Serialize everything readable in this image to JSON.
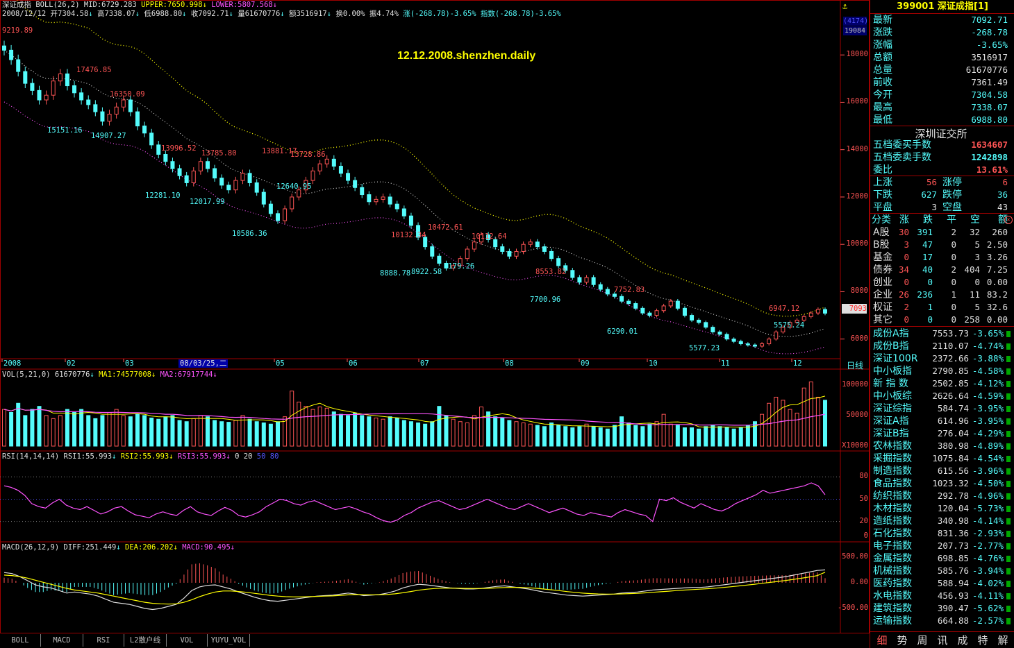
{
  "chart": {
    "name": "深证成指",
    "boll_header": "BOLL(26,2)",
    "mid": "MID:6729.283",
    "upper": "UPPER:7650.998",
    "lower": "LOWER:5807.568",
    "date": "2008/12/12",
    "ohlc_line": {
      "open": "开7304.58",
      "high": "高7338.07",
      "low": "低6988.80",
      "close": "收7092.71",
      "volume": "量61670776",
      "amount": "额3516917",
      "turnover": "换0.00%",
      "amplitude": "振4.74%",
      "change": "涨(-268.78)-3.65%",
      "index": "指数(-268.78)-3.65%"
    },
    "watermark": "12.12.2008.shenzhen.daily",
    "badge_top": "(4174)",
    "badge_bottom": "19084",
    "price_tag": "7093",
    "y_ticks": [
      "18000",
      "16000",
      "14000",
      "12000",
      "10000",
      "8000",
      "6000"
    ],
    "x_ticks": [
      "2008",
      "02",
      "03",
      "05",
      "06",
      "07",
      "08",
      "09",
      "10",
      "11",
      "12"
    ],
    "cursor_date": "08/03/25,二",
    "period": "日线",
    "marked_points": [
      {
        "text": "9219.89",
        "color": "red"
      },
      {
        "text": "17476.85",
        "color": "red"
      },
      {
        "text": "16350.09",
        "color": "red"
      },
      {
        "text": "15151.16",
        "color": "cyan"
      },
      {
        "text": "14907.27",
        "color": "cyan"
      },
      {
        "text": "13996.52",
        "color": "red"
      },
      {
        "text": "13785.80",
        "color": "red"
      },
      {
        "text": "13881.17",
        "color": "red"
      },
      {
        "text": "13728.86",
        "color": "red"
      },
      {
        "text": "12281.10",
        "color": "cyan"
      },
      {
        "text": "12017.99",
        "color": "cyan"
      },
      {
        "text": "12640.95",
        "color": "cyan"
      },
      {
        "text": "10586.36",
        "color": "cyan"
      },
      {
        "text": "10132.34",
        "color": "red"
      },
      {
        "text": "10472.61",
        "color": "red"
      },
      {
        "text": "10112.64",
        "color": "red"
      },
      {
        "text": "8888.78",
        "color": "cyan"
      },
      {
        "text": "8922.58",
        "color": "cyan"
      },
      {
        "text": "9179.26",
        "color": "cyan"
      },
      {
        "text": "8553.82",
        "color": "red"
      },
      {
        "text": "7700.96",
        "color": "cyan"
      },
      {
        "text": "7752.83",
        "color": "red"
      },
      {
        "text": "6290.01",
        "color": "cyan"
      },
      {
        "text": "6947.12",
        "color": "red"
      },
      {
        "text": "5575.24",
        "color": "cyan"
      },
      {
        "text": "5577.23",
        "color": "cyan"
      }
    ],
    "close_series": [
      18200,
      17800,
      17300,
      16800,
      16500,
      16100,
      16300,
      16900,
      17200,
      16700,
      16400,
      16100,
      15900,
      15600,
      15200,
      15500,
      15800,
      16100,
      15600,
      15000,
      14700,
      14200,
      13800,
      13500,
      13200,
      12900,
      12600,
      13100,
      13500,
      13200,
      12800,
      12500,
      12300,
      12700,
      13000,
      12600,
      12200,
      11700,
      11300,
      11000,
      11500,
      12000,
      12300,
      12700,
      13100,
      13400,
      13600,
      13300,
      13000,
      12700,
      12400,
      12100,
      11800,
      11900,
      12000,
      11700,
      11500,
      11200,
      10800,
      10300,
      9900,
      9500,
      9200,
      9000,
      9100,
      9400,
      9800,
      10100,
      10400,
      10200,
      9900,
      9700,
      9500,
      9700,
      10000,
      10100,
      9900,
      9700,
      9400,
      9100,
      8900,
      8600,
      8400,
      8600,
      8300,
      8100,
      7900,
      7800,
      7600,
      7500,
      7300,
      7100,
      7000,
      7200,
      7400,
      7600,
      7300,
      7000,
      6800,
      6700,
      6500,
      6300,
      6200,
      6000,
      5900,
      5800,
      5750,
      5700,
      5800,
      6000,
      6300,
      6500,
      6700,
      6800,
      6950,
      7100,
      7250,
      7092
    ]
  },
  "volume_panel": {
    "header": "VOL(5,21,0)",
    "value": "61670776",
    "ma1": "MA1:74577008",
    "ma2": "MA2:67917744",
    "y_ticks": [
      "100000",
      "50000",
      "X10000"
    ],
    "volumes": [
      6,
      5.5,
      7,
      5,
      6,
      6.5,
      5,
      4.5,
      5,
      6,
      5.5,
      6,
      5,
      4.5,
      5,
      5.5,
      6,
      5,
      4.8,
      5.2,
      5,
      4.6,
      4.4,
      4.8,
      5,
      4.2,
      4,
      4.5,
      5,
      4.8,
      4.2,
      4,
      3.9,
      4.2,
      5,
      4.4,
      4,
      3.8,
      3.6,
      4,
      4.8,
      9,
      7.2,
      6.5,
      6,
      6.4,
      6.2,
      5.6,
      5.2,
      5,
      5.4,
      5,
      4.8,
      4.6,
      4.4,
      4.8,
      4.6,
      4.2,
      4,
      3.8,
      3.6,
      4,
      6.5,
      5,
      4.4,
      4,
      3.8,
      5,
      6.4,
      5.6,
      4.8,
      4.6,
      4.2,
      4,
      3.8,
      3.6,
      3.4,
      3.2,
      3.8,
      3.4,
      3.2,
      3,
      3.2,
      3.6,
      3.2,
      3,
      2.8,
      3.4,
      4.8,
      3.8,
      3.4,
      3.2,
      3.6,
      4,
      5.2,
      3.6,
      3.4,
      3,
      3,
      2.8,
      3.2,
      3.4,
      3.2,
      3,
      2.8,
      3,
      3.4,
      4,
      5.2,
      7,
      8,
      7.5,
      6,
      5.4,
      9.5,
      10.5,
      8,
      7.5
    ]
  },
  "rsi_panel": {
    "header": "RSI(14,14,14)",
    "rsi1": "RSI1:55.993",
    "rsi2": "RSI2:55.993",
    "rsi3": "RSI3:55.993",
    "levels": [
      "0",
      "20",
      "50",
      "80"
    ],
    "y_ticks": [
      "80",
      "50",
      "20",
      "0"
    ],
    "values": [
      68,
      66,
      62,
      55,
      44,
      40,
      38,
      45,
      50,
      42,
      38,
      36,
      40,
      35,
      30,
      33,
      38,
      40,
      34,
      29,
      27,
      25,
      30,
      33,
      30,
      28,
      35,
      40,
      33,
      30,
      28,
      34,
      39,
      35,
      28,
      26,
      29,
      33,
      40,
      45,
      50,
      48,
      44,
      42,
      46,
      48,
      44,
      40,
      36,
      38,
      40,
      37,
      33,
      30,
      25,
      21,
      19,
      22,
      28,
      32,
      38,
      42,
      46,
      48,
      44,
      40,
      36,
      38,
      42,
      46,
      50,
      46,
      42,
      38,
      36,
      40,
      44,
      40,
      36,
      32,
      35,
      38,
      34,
      30,
      28,
      32,
      30,
      28,
      26,
      32,
      36,
      33,
      30,
      28,
      20,
      50,
      48,
      52,
      46,
      42,
      38,
      44,
      40,
      36,
      34,
      38,
      44,
      48,
      52,
      56,
      62,
      58,
      60,
      62,
      64,
      66,
      68,
      72,
      68,
      56
    ]
  },
  "macd_panel": {
    "header": "MACD(26,12,9)",
    "diff": "DIFF:251.449",
    "dea": "DEA:206.202",
    "macd": "MACD:90.495",
    "y_ticks": [
      "500.00",
      "0.00",
      "-500.00"
    ],
    "diff_series": [
      200,
      180,
      120,
      40,
      -40,
      -80,
      -100,
      -150,
      -200,
      -180,
      -200,
      -220,
      -260,
      -320,
      -380,
      -400,
      -420,
      -460,
      -500,
      -520,
      -500,
      -460,
      -420,
      -300,
      -150,
      -80,
      -50,
      -40,
      -80,
      -120,
      -180,
      -230,
      -280,
      -320,
      -350,
      -360,
      -340,
      -320,
      -300,
      -280,
      -260,
      -250,
      -240,
      -220,
      -200,
      -220,
      -250,
      -240,
      -230,
      -200,
      -160,
      -100,
      -60,
      -30,
      -40,
      -60,
      -80,
      -100,
      -110,
      -120,
      -120,
      -110,
      -90,
      -70,
      -60,
      -80,
      -100,
      -120,
      -150,
      -180,
      -200,
      -220,
      -240,
      -250,
      -260,
      -250,
      -240,
      -230,
      -220,
      -200,
      -190,
      -180,
      -160,
      -140,
      -130,
      -120,
      -110,
      -100,
      -90,
      -90,
      -80,
      -60,
      -40,
      -20,
      0,
      20,
      40,
      60,
      80,
      100,
      120,
      150,
      180,
      210,
      240,
      251
    ],
    "dea_series": [
      150,
      140,
      120,
      90,
      50,
      10,
      -30,
      -70,
      -110,
      -140,
      -160,
      -180,
      -200,
      -230,
      -260,
      -290,
      -320,
      -350,
      -380,
      -400,
      -410,
      -415,
      -410,
      -380,
      -330,
      -270,
      -220,
      -180,
      -160,
      -160,
      -170,
      -185,
      -205,
      -225,
      -245,
      -260,
      -270,
      -275,
      -275,
      -270,
      -265,
      -260,
      -255,
      -245,
      -235,
      -230,
      -232,
      -234,
      -234,
      -228,
      -215,
      -195,
      -170,
      -145,
      -125,
      -112,
      -106,
      -105,
      -106,
      -109,
      -111,
      -111,
      -107,
      -100,
      -92,
      -89,
      -91,
      -97,
      -107,
      -121,
      -137,
      -153,
      -171,
      -187,
      -201,
      -211,
      -217,
      -220,
      -220,
      -216,
      -211,
      -205,
      -196,
      -185,
      -174,
      -163,
      -152,
      -142,
      -132,
      -124,
      -115,
      -104,
      -91,
      -77,
      -61,
      -45,
      -28,
      -10,
      8,
      27,
      46,
      67,
      89,
      113,
      139,
      206
    ]
  },
  "bottom_tabs": [
    "BOLL",
    "MACD",
    "RSI",
    "L2散户线",
    "VOL",
    "YUYU_VOL"
  ],
  "panel": {
    "title_code": "399001",
    "title_name": "深证成指",
    "title_suffix": "[1]",
    "quotes": [
      {
        "k": "最新",
        "v": "7092.71",
        "c": "#54fcfc"
      },
      {
        "k": "涨跌",
        "v": "-268.78",
        "c": "#54fcfc"
      },
      {
        "k": "涨幅",
        "v": "-3.65%",
        "c": "#54fcfc"
      },
      {
        "k": "总额",
        "v": "3516917",
        "c": "#e0e0e0"
      },
      {
        "k": "总量",
        "v": "61670776",
        "c": "#e0e0e0"
      },
      {
        "k": "前收",
        "v": "7361.49",
        "c": "#e0e0e0"
      },
      {
        "k": "今开",
        "v": "7304.58",
        "c": "#54fcfc"
      },
      {
        "k": "最高",
        "v": "7338.07",
        "c": "#54fcfc"
      },
      {
        "k": "最低",
        "v": "6988.80",
        "c": "#54fcfc"
      }
    ],
    "exchange": "深圳证交所",
    "orders": [
      {
        "k": "五档委买手数",
        "v": "1634607",
        "c": "#ff5555"
      },
      {
        "k": "五档委卖手数",
        "v": "1242898",
        "c": "#54fcfc"
      },
      {
        "k": "委比",
        "v": "13.61%",
        "c": "#ff5555"
      }
    ],
    "breadth": [
      {
        "k1": "上涨",
        "v1": "56",
        "c1": "#ff5555",
        "k2": "涨停",
        "v2": "6",
        "c2": "#ff5555"
      },
      {
        "k1": "下跌",
        "v1": "627",
        "c1": "#54fcfc",
        "k2": "跌停",
        "v2": "36",
        "c2": "#54fcfc"
      },
      {
        "k1": "平盘",
        "v1": "3",
        "c1": "#e0e0e0",
        "k2": "空盘",
        "v2": "43",
        "c2": "#e0e0e0"
      }
    ],
    "cat_header": [
      "分类",
      "涨",
      "跌",
      "平",
      "空",
      "额"
    ],
    "categories": [
      {
        "n": "A股",
        "u": "30",
        "d": "391",
        "f": "2",
        "e": "32",
        "a": "260"
      },
      {
        "n": "B股",
        "u": "3",
        "d": "47",
        "f": "0",
        "e": "5",
        "a": "2.50"
      },
      {
        "n": "基金",
        "u": "0",
        "d": "17",
        "f": "0",
        "e": "3",
        "a": "3.26"
      },
      {
        "n": "债券",
        "u": "34",
        "d": "40",
        "f": "2",
        "e": "404",
        "a": "7.25"
      },
      {
        "n": "创业",
        "u": "0",
        "d": "0",
        "f": "0",
        "e": "0",
        "a": "0.00"
      },
      {
        "n": "企业",
        "u": "26",
        "d": "236",
        "f": "1",
        "e": "11",
        "a": "83.2"
      },
      {
        "n": "权证",
        "u": "2",
        "d": "1",
        "f": "0",
        "e": "5",
        "a": "32.6"
      },
      {
        "n": "其它",
        "u": "0",
        "d": "0",
        "f": "0",
        "e": "258",
        "a": "0.00"
      }
    ],
    "indices": [
      {
        "n": "成份A指",
        "p": "7553.73",
        "c": "-3.65%"
      },
      {
        "n": "成份B指",
        "p": "2110.07",
        "c": "-4.74%"
      },
      {
        "n": "深证100R",
        "p": "2372.66",
        "c": "-3.88%"
      },
      {
        "n": "中小板指",
        "p": "2790.85",
        "c": "-4.58%"
      },
      {
        "n": "新 指 数",
        "p": "2502.85",
        "c": "-4.12%"
      },
      {
        "n": "中小板综",
        "p": "2626.64",
        "c": "-4.59%"
      },
      {
        "n": "深证综指",
        "p": "584.74",
        "c": "-3.95%"
      },
      {
        "n": "深证A指",
        "p": "614.96",
        "c": "-3.95%"
      },
      {
        "n": "深证B指",
        "p": "276.04",
        "c": "-4.29%"
      },
      {
        "n": "农林指数",
        "p": "380.98",
        "c": "-4.89%"
      },
      {
        "n": "采掘指数",
        "p": "1075.84",
        "c": "-4.54%"
      },
      {
        "n": "制造指数",
        "p": "615.56",
        "c": "-3.96%"
      },
      {
        "n": "食品指数",
        "p": "1023.32",
        "c": "-4.50%"
      },
      {
        "n": "纺织指数",
        "p": "292.78",
        "c": "-4.96%"
      },
      {
        "n": "木材指数",
        "p": "120.04",
        "c": "-5.73%"
      },
      {
        "n": "造纸指数",
        "p": "340.98",
        "c": "-4.14%"
      },
      {
        "n": "石化指数",
        "p": "831.36",
        "c": "-2.93%"
      },
      {
        "n": "电子指数",
        "p": "207.73",
        "c": "-2.77%"
      },
      {
        "n": "金属指数",
        "p": "698.85",
        "c": "-4.76%"
      },
      {
        "n": "机械指数",
        "p": "585.76",
        "c": "-3.94%"
      },
      {
        "n": "医药指数",
        "p": "588.94",
        "c": "-4.02%"
      },
      {
        "n": "水电指数",
        "p": "456.93",
        "c": "-4.11%"
      },
      {
        "n": "建筑指数",
        "p": "390.47",
        "c": "-5.62%"
      },
      {
        "n": "运输指数",
        "p": "664.88",
        "c": "-2.57%"
      }
    ],
    "tabs": [
      "细",
      "势",
      "周",
      "讯",
      "成",
      "特",
      "解"
    ]
  }
}
